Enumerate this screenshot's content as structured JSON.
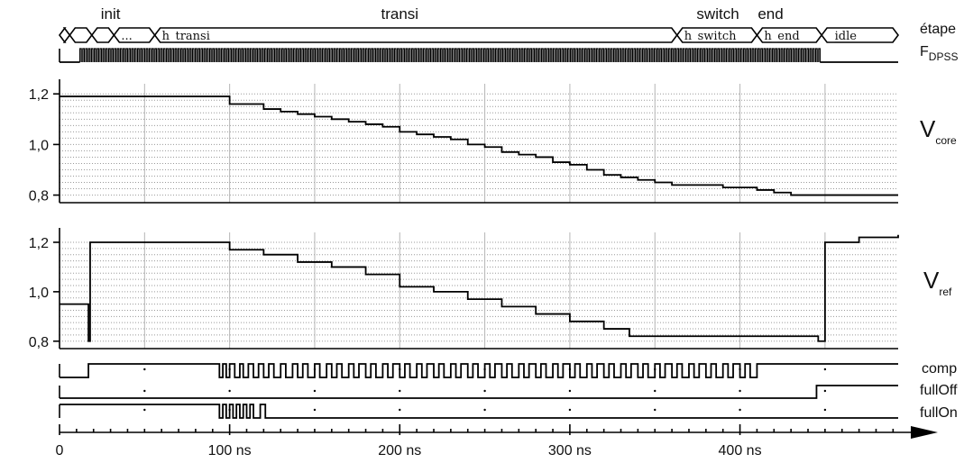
{
  "chart_data": {
    "type": "line",
    "title": "",
    "phases": [
      {
        "name": "init",
        "t": 30
      },
      {
        "name": "transi",
        "t": 200
      },
      {
        "name": "switch",
        "t": 387
      },
      {
        "name": "end",
        "t": 418
      }
    ],
    "step_label": "étape",
    "dpss_label": {
      "main": "F",
      "sub": "DPSS"
    },
    "states": [
      {
        "label": "",
        "start": 0,
        "end": 6
      },
      {
        "label": "",
        "start": 6,
        "end": 19
      },
      {
        "label": "",
        "start": 19,
        "end": 32
      },
      {
        "label": "...",
        "start": 32,
        "end": 56
      },
      {
        "label": "h_transi",
        "start": 56,
        "end": 363
      },
      {
        "label": "h_switch",
        "start": 363,
        "end": 410
      },
      {
        "label": "h_end",
        "start": 410,
        "end": 448
      },
      {
        "label": "_idle",
        "start": 448,
        "end": 493
      }
    ],
    "dpss_activity": {
      "start": 12,
      "end": 447
    },
    "x_axis": {
      "ticks": [
        0,
        100,
        200,
        300,
        400
      ],
      "tick_labels": [
        "0",
        "100 ns",
        "200 ns",
        "300 ns",
        "400 ns"
      ],
      "xlim": [
        0,
        493
      ]
    },
    "y_ticks": [
      0.8,
      1.0,
      1.2
    ],
    "y_tick_labels": [
      "0,8",
      "1,0",
      "1,2"
    ],
    "ylim": [
      0.77,
      1.24
    ],
    "series": [
      {
        "name": "V",
        "name_sub": "core",
        "x": [
          0,
          94,
          100,
          110,
          120,
          130,
          140,
          150,
          160,
          170,
          180,
          190,
          200,
          210,
          220,
          230,
          240,
          250,
          260,
          270,
          280,
          290,
          300,
          310,
          320,
          330,
          340,
          350,
          360,
          370,
          380,
          390,
          400,
          410,
          420,
          430,
          440,
          450,
          460,
          470,
          480,
          493
        ],
        "y": [
          1.19,
          1.19,
          1.16,
          1.16,
          1.14,
          1.13,
          1.12,
          1.11,
          1.1,
          1.09,
          1.08,
          1.07,
          1.05,
          1.04,
          1.03,
          1.02,
          1.0,
          0.99,
          0.97,
          0.96,
          0.95,
          0.93,
          0.92,
          0.9,
          0.88,
          0.87,
          0.86,
          0.85,
          0.84,
          0.84,
          0.84,
          0.83,
          0.83,
          0.82,
          0.81,
          0.8,
          0.8,
          0.8,
          0.8,
          0.8,
          0.8,
          0.8
        ]
      },
      {
        "name": "V",
        "name_sub": "ref",
        "x": [
          0,
          16,
          17,
          18,
          60,
          100,
          120,
          140,
          160,
          180,
          200,
          220,
          240,
          260,
          280,
          300,
          320,
          335,
          350,
          445,
          446,
          450,
          470,
          493
        ],
        "y": [
          0.95,
          0.95,
          0.8,
          1.2,
          1.2,
          1.17,
          1.15,
          1.12,
          1.1,
          1.07,
          1.02,
          1.0,
          0.97,
          0.94,
          0.91,
          0.88,
          0.85,
          0.82,
          0.82,
          0.82,
          0.8,
          1.2,
          1.22,
          1.23
        ]
      }
    ],
    "digital": [
      {
        "name": "comp",
        "transitions": [
          [
            0,
            0
          ],
          [
            17,
            1
          ],
          [
            94,
            0
          ],
          [
            96,
            1
          ],
          [
            98,
            0
          ],
          [
            100,
            1
          ],
          [
            103,
            0
          ],
          [
            106,
            1
          ],
          [
            108,
            0
          ],
          [
            111,
            1
          ],
          [
            114,
            0
          ],
          [
            117,
            1
          ],
          [
            120,
            0
          ],
          [
            123,
            1
          ],
          [
            126,
            0
          ],
          [
            130,
            1
          ],
          [
            133,
            0
          ],
          [
            137,
            1
          ],
          [
            140,
            0
          ],
          [
            143,
            1
          ],
          [
            146,
            0
          ],
          [
            150,
            1
          ],
          [
            153,
            0
          ],
          [
            157,
            1
          ],
          [
            160,
            0
          ],
          [
            163,
            1
          ],
          [
            166,
            0
          ],
          [
            170,
            1
          ],
          [
            173,
            0
          ],
          [
            176,
            1
          ],
          [
            180,
            0
          ],
          [
            183,
            1
          ],
          [
            186,
            0
          ],
          [
            190,
            1
          ],
          [
            193,
            0
          ],
          [
            196,
            1
          ],
          [
            200,
            0
          ],
          [
            203,
            1
          ],
          [
            206,
            0
          ],
          [
            210,
            1
          ],
          [
            213,
            0
          ],
          [
            216,
            1
          ],
          [
            220,
            0
          ],
          [
            223,
            1
          ],
          [
            226,
            0
          ],
          [
            230,
            1
          ],
          [
            233,
            0
          ],
          [
            236,
            1
          ],
          [
            240,
            0
          ],
          [
            243,
            1
          ],
          [
            246,
            0
          ],
          [
            250,
            1
          ],
          [
            253,
            0
          ],
          [
            256,
            1
          ],
          [
            260,
            0
          ],
          [
            263,
            1
          ],
          [
            266,
            0
          ],
          [
            270,
            1
          ],
          [
            273,
            0
          ],
          [
            276,
            1
          ],
          [
            280,
            0
          ],
          [
            283,
            1
          ],
          [
            286,
            0
          ],
          [
            290,
            1
          ],
          [
            293,
            0
          ],
          [
            296,
            1
          ],
          [
            300,
            0
          ],
          [
            303,
            1
          ],
          [
            306,
            0
          ],
          [
            310,
            1
          ],
          [
            313,
            0
          ],
          [
            316,
            1
          ],
          [
            320,
            0
          ],
          [
            323,
            1
          ],
          [
            326,
            0
          ],
          [
            330,
            1
          ],
          [
            333,
            0
          ],
          [
            336,
            1
          ],
          [
            340,
            0
          ],
          [
            343,
            1
          ],
          [
            346,
            0
          ],
          [
            350,
            1
          ],
          [
            353,
            0
          ],
          [
            356,
            1
          ],
          [
            360,
            0
          ],
          [
            363,
            1
          ],
          [
            366,
            0
          ],
          [
            370,
            1
          ],
          [
            373,
            0
          ],
          [
            376,
            1
          ],
          [
            380,
            0
          ],
          [
            383,
            1
          ],
          [
            386,
            0
          ],
          [
            390,
            1
          ],
          [
            393,
            0
          ],
          [
            396,
            1
          ],
          [
            400,
            0
          ],
          [
            403,
            1
          ],
          [
            406,
            0
          ],
          [
            410,
            1
          ]
        ]
      },
      {
        "name": "fullOff",
        "transitions": [
          [
            0,
            0
          ],
          [
            445,
            1
          ]
        ]
      },
      {
        "name": "fullOn",
        "transitions": [
          [
            0,
            1
          ],
          [
            94,
            0
          ],
          [
            96,
            1
          ],
          [
            98,
            0
          ],
          [
            100,
            1
          ],
          [
            102,
            0
          ],
          [
            104,
            1
          ],
          [
            106,
            0
          ],
          [
            108,
            1
          ],
          [
            110,
            0
          ],
          [
            112,
            1
          ],
          [
            114,
            0
          ],
          [
            118,
            1
          ],
          [
            121,
            0
          ]
        ]
      }
    ]
  }
}
